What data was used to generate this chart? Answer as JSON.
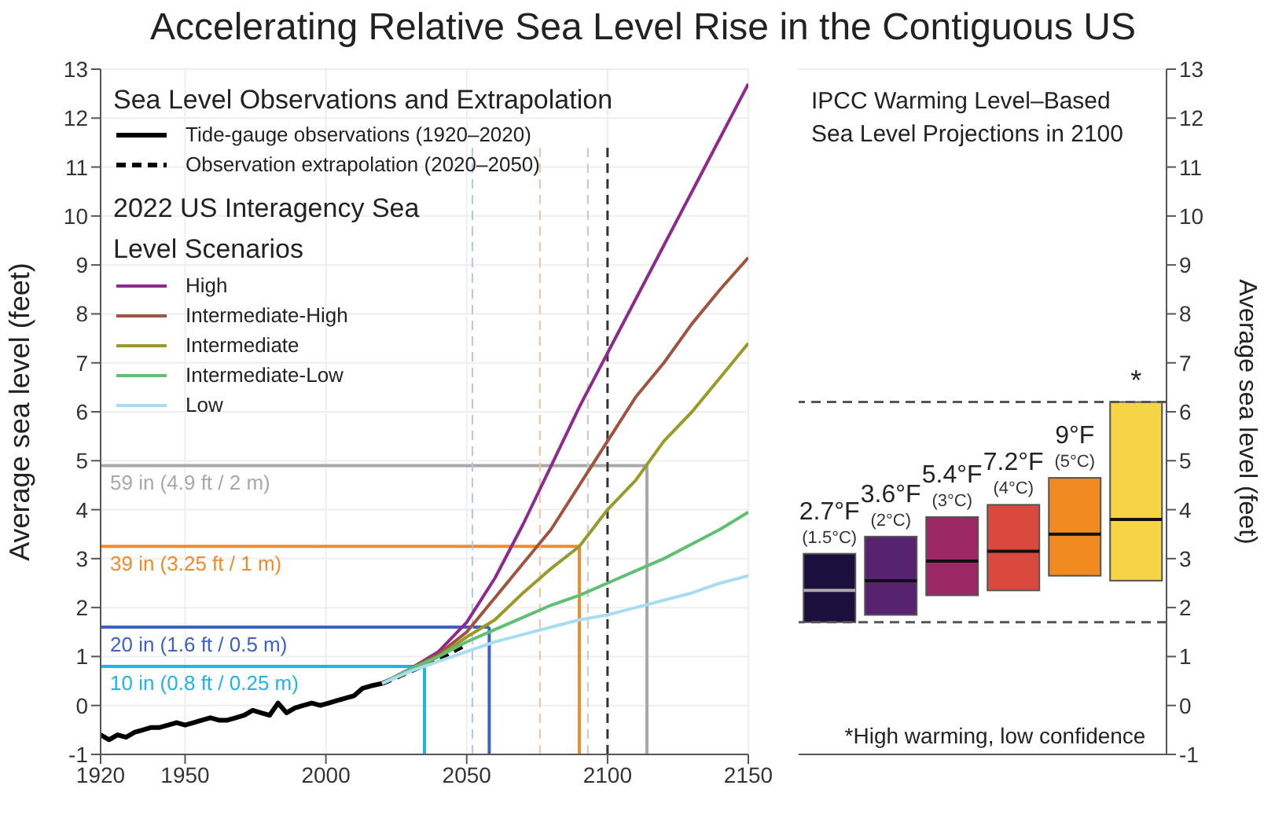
{
  "chart_data": [
    {
      "type": "line",
      "title": "Accelerating Relative Sea Level Rise in the Contiguous US",
      "subtitle": "Sea Level Observations and Extrapolation",
      "legend_title": "2022 US Interagency Sea Level Scenarios",
      "ylabel": "Average sea level (feet)",
      "xlim": [
        1920,
        2150
      ],
      "xticks": [
        1920,
        1950,
        2000,
        2050,
        2100,
        2150
      ],
      "ylim": [
        -1,
        13
      ],
      "yticks": [
        -1,
        0,
        1,
        2,
        3,
        4,
        5,
        6,
        7,
        8,
        9,
        10,
        11,
        12,
        13
      ],
      "grid": true,
      "legend": "top left",
      "series": [
        {
          "name": "Tide-gauge observations (1920–2020)",
          "color": "#000000",
          "line_style": "solid",
          "x": [
            1920,
            1923,
            1926,
            1929,
            1932,
            1935,
            1938,
            1941,
            1944,
            1947,
            1950,
            1953,
            1956,
            1959,
            1962,
            1965,
            1968,
            1971,
            1974,
            1977,
            1980,
            1983,
            1986,
            1989,
            1992,
            1995,
            1998,
            2001,
            2004,
            2007,
            2010,
            2013,
            2016,
            2020
          ],
          "values": [
            -0.6,
            -0.7,
            -0.6,
            -0.65,
            -0.55,
            -0.5,
            -0.45,
            -0.45,
            -0.4,
            -0.35,
            -0.4,
            -0.35,
            -0.3,
            -0.25,
            -0.3,
            -0.3,
            -0.25,
            -0.2,
            -0.1,
            -0.15,
            -0.2,
            0.05,
            -0.15,
            -0.05,
            0.0,
            0.05,
            0.0,
            0.05,
            0.1,
            0.15,
            0.2,
            0.35,
            0.4,
            0.45
          ]
        },
        {
          "name": "Observation extrapolation (2020–2050)",
          "color": "#000000",
          "line_style": "dashed",
          "x": [
            2020,
            2030,
            2040,
            2050
          ],
          "values": [
            0.45,
            0.7,
            0.95,
            1.25
          ]
        },
        {
          "name": "High",
          "color": "#8e2a8e",
          "line_style": "solid",
          "x": [
            2020,
            2030,
            2040,
            2050,
            2060,
            2070,
            2080,
            2090,
            2100,
            2110,
            2120,
            2130,
            2140,
            2150
          ],
          "values": [
            0.45,
            0.75,
            1.1,
            1.7,
            2.6,
            3.7,
            4.9,
            6.1,
            7.2,
            8.3,
            9.4,
            10.5,
            11.6,
            12.7
          ]
        },
        {
          "name": "Intermediate-High",
          "color": "#a0533f",
          "line_style": "solid",
          "x": [
            2020,
            2030,
            2040,
            2050,
            2060,
            2070,
            2080,
            2090,
            2100,
            2110,
            2120,
            2130,
            2140,
            2150
          ],
          "values": [
            0.45,
            0.75,
            1.05,
            1.5,
            2.2,
            2.9,
            3.6,
            4.5,
            5.4,
            6.3,
            7.0,
            7.8,
            8.5,
            9.15
          ]
        },
        {
          "name": "Intermediate",
          "color": "#9a9a28",
          "line_style": "solid",
          "x": [
            2020,
            2030,
            2040,
            2050,
            2060,
            2070,
            2080,
            2090,
            2100,
            2110,
            2120,
            2130,
            2140,
            2150
          ],
          "values": [
            0.45,
            0.7,
            1.0,
            1.4,
            1.75,
            2.3,
            2.8,
            3.25,
            4.0,
            4.6,
            5.4,
            6.0,
            6.7,
            7.4
          ]
        },
        {
          "name": "Intermediate-Low",
          "color": "#5fbf72",
          "line_style": "solid",
          "x": [
            2020,
            2030,
            2040,
            2050,
            2060,
            2070,
            2080,
            2090,
            2100,
            2110,
            2120,
            2130,
            2140,
            2150
          ],
          "values": [
            0.45,
            0.75,
            1.0,
            1.3,
            1.55,
            1.8,
            2.05,
            2.25,
            2.5,
            2.75,
            3.0,
            3.3,
            3.6,
            3.95
          ]
        },
        {
          "name": "Low",
          "color": "#a8dcf0",
          "line_style": "solid",
          "x": [
            2020,
            2030,
            2040,
            2050,
            2060,
            2070,
            2080,
            2090,
            2100,
            2110,
            2120,
            2130,
            2140,
            2150
          ],
          "values": [
            0.45,
            0.7,
            0.9,
            1.1,
            1.3,
            1.45,
            1.6,
            1.75,
            1.85,
            2.0,
            2.15,
            2.3,
            2.5,
            2.65
          ]
        }
      ],
      "ref_lines": [
        {
          "axis": "y",
          "value": 0.8,
          "label": "10 in (0.8 ft / 0.25 m)",
          "color": "#1fb4e8"
        },
        {
          "axis": "y",
          "value": 1.6,
          "label": "20 in (1.6 ft / 0.5 m)",
          "color": "#3d62c4"
        },
        {
          "axis": "y",
          "value": 3.25,
          "label": "39 in (3.25 ft / 1 m)",
          "color": "#f08a2c"
        },
        {
          "axis": "y",
          "value": 4.9,
          "label": "59 in (4.9 ft / 2 m)",
          "color": "#a8a8a8"
        },
        {
          "axis": "x",
          "value": 2035,
          "color": "#1fb4e8",
          "line_style": "solid"
        },
        {
          "axis": "x",
          "value": 2058,
          "color": "#3d62c4",
          "line_style": "solid"
        },
        {
          "axis": "x",
          "value": 2090,
          "color": "#f08a2c",
          "line_style": "solid"
        },
        {
          "axis": "x",
          "value": 2114,
          "color": "#a8a8a8",
          "line_style": "solid"
        },
        {
          "axis": "x",
          "value": 2100,
          "color": "#333333",
          "line_style": "dashed"
        },
        {
          "axis": "x",
          "value": 2052,
          "color": "#a8c8f0",
          "line_style": "dashed"
        },
        {
          "axis": "x",
          "value": 2076,
          "color": "#f8c0a0",
          "line_style": "dashed"
        },
        {
          "axis": "x",
          "value": 2093,
          "color": "#c8c8c8",
          "line_style": "dashed"
        }
      ]
    },
    {
      "type": "box",
      "title": "IPCC Warming Level–Based Sea Level Projections in 2100",
      "ylabel": "Average sea level (feet)",
      "ylim": [
        -1,
        13
      ],
      "yticks": [
        -1,
        0,
        1,
        2,
        3,
        4,
        5,
        6,
        7,
        8,
        9,
        10,
        11,
        12,
        13
      ],
      "grid": "y",
      "tick_labels": "y",
      "categories": [
        "2.7°F (1.5°C)",
        "3.6°F (2°C)",
        "5.4°F (3°C)",
        "7.2°F (4°C)",
        "9°F (5°C)",
        "*"
      ],
      "colors": [
        "#1a0f3d",
        "#57226f",
        "#9c2765",
        "#d9493e",
        "#f28a22",
        "#f5d445"
      ],
      "boxes": [
        {
          "low": 1.7,
          "q1": 1.7,
          "median": 2.35,
          "q3": 3.1,
          "high": 3.1
        },
        {
          "low": 1.85,
          "q1": 1.85,
          "median": 2.55,
          "q3": 3.45,
          "high": 3.45
        },
        {
          "low": 2.25,
          "q1": 2.25,
          "median": 2.95,
          "q3": 3.85,
          "high": 3.85
        },
        {
          "low": 2.35,
          "q1": 2.35,
          "median": 3.15,
          "q3": 4.1,
          "high": 4.1
        },
        {
          "low": 2.65,
          "q1": 2.65,
          "median": 3.5,
          "q3": 4.65,
          "high": 4.65
        },
        {
          "low": 2.55,
          "q1": 2.55,
          "median": 3.8,
          "q3": 6.2,
          "high": 6.2
        }
      ],
      "ref_lines": [
        {
          "axis": "y",
          "value": 6.2,
          "color": "#555555",
          "line_style": "dashed"
        },
        {
          "axis": "y",
          "value": 1.7,
          "color": "#555555",
          "line_style": "dashed"
        }
      ],
      "annotations": [
        "*High warming, low confidence"
      ]
    }
  ]
}
